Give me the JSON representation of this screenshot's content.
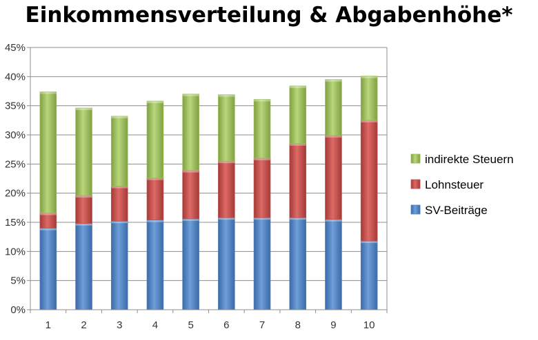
{
  "chart_data": {
    "type": "bar",
    "stacked": true,
    "title": "Einkommensverteilung & Abgabenhöhe*",
    "categories": [
      "1",
      "2",
      "3",
      "4",
      "5",
      "6",
      "7",
      "8",
      "9",
      "10"
    ],
    "series": [
      {
        "name": "SV-Beiträge",
        "color": "#4f81bd",
        "values": [
          14.0,
          14.8,
          15.2,
          15.4,
          15.6,
          15.8,
          15.8,
          15.8,
          15.5,
          11.8
        ]
      },
      {
        "name": "Lohnsteuer",
        "color": "#c0504d",
        "values": [
          2.6,
          4.8,
          6.0,
          7.2,
          8.3,
          9.7,
          10.2,
          12.7,
          14.4,
          20.7
        ]
      },
      {
        "name": "indirekte Steuern",
        "color": "#9bbb59",
        "values": [
          20.8,
          15.0,
          12.0,
          13.2,
          13.1,
          11.4,
          10.1,
          9.9,
          9.6,
          7.6
        ]
      }
    ],
    "yticks": [
      "0%",
      "5%",
      "10%",
      "15%",
      "20%",
      "25%",
      "30%",
      "35%",
      "40%",
      "45%"
    ],
    "ylim": [
      0,
      45
    ],
    "grid": true,
    "legend_position": "right"
  }
}
